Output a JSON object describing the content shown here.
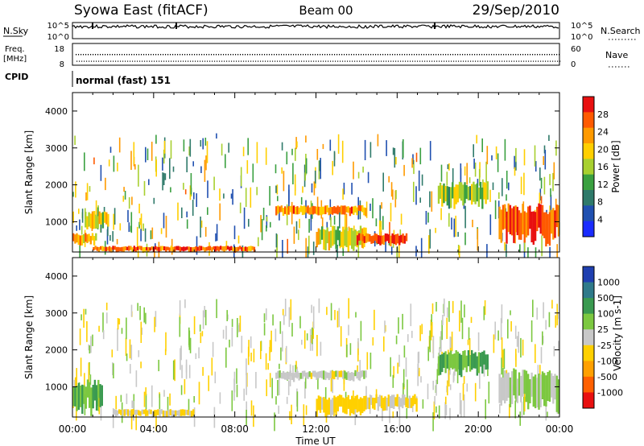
{
  "header": {
    "station": "Syowa East (fitACF)",
    "beam": "Beam 00",
    "date": "29/Sep/2010"
  },
  "noise_panel": {
    "left_label": "N.Sky",
    "right_label": "N.Search",
    "left_ticks": [
      "10^5",
      "10^0"
    ],
    "right_ticks": [
      "10^5",
      "10^0"
    ]
  },
  "freq_panel": {
    "left_label_top": "Freq.",
    "left_label_unit": "[MHz]",
    "right_label": "Nave",
    "left_ticks": [
      "18",
      "8"
    ],
    "right_ticks": [
      "60",
      "0"
    ]
  },
  "cpid": {
    "label": "CPID",
    "value": "normal (fast) 151"
  },
  "x_axis": {
    "title": "Time UT",
    "ticks": [
      "00:00",
      "04:00",
      "08:00",
      "12:00",
      "16:00",
      "20:00",
      "00:00"
    ]
  },
  "power_panel": {
    "ylabel": "Slant Range [km]",
    "yticks": [
      "4000",
      "3000",
      "2000",
      "1000"
    ],
    "colorbar_label": "Power [dB]",
    "colorbar_ticks": [
      "28",
      "24",
      "20",
      "16",
      "12",
      "8",
      "4"
    ],
    "colorbar_colors": [
      "#e81010",
      "#ff5a00",
      "#ff9a00",
      "#ffcf00",
      "#a8d030",
      "#3aa040",
      "#2f7a6a",
      "#2050b0",
      "#1a2cff"
    ]
  },
  "velocity_panel": {
    "ylabel": "Slant Range [km]",
    "yticks": [
      "4000",
      "3000",
      "2000",
      "1000"
    ],
    "colorbar_label": "Velocity [m s-1]",
    "colorbar_ticks": [
      "1000",
      "500",
      "100",
      "25",
      "-25",
      "-100",
      "-500",
      "-1000"
    ],
    "colorbar_colors": [
      "#1f3fb0",
      "#2f7a8a",
      "#3a9a50",
      "#7cc840",
      "#c8c8c8",
      "#ffd000",
      "#ffa000",
      "#ff6000",
      "#e81010"
    ]
  },
  "chart_data": [
    {
      "type": "heatmap",
      "title": "Power",
      "xlabel": "Time UT",
      "ylabel": "Slant Range [km]",
      "xlim": [
        "00:00",
        "24:00"
      ],
      "ylim": [
        180,
        4500
      ],
      "colorbar": {
        "label": "Power [dB]",
        "range": [
          0,
          30
        ]
      },
      "patches": [
        {
          "t": [
            0.0,
            1.2
          ],
          "r": [
            400,
            700
          ],
          "value": 20
        },
        {
          "t": [
            0.6,
            1.8
          ],
          "r": [
            800,
            1300
          ],
          "value": 18
        },
        {
          "t": [
            1.0,
            9.0
          ],
          "r": [
            200,
            350
          ],
          "value": 24
        },
        {
          "t": [
            10.0,
            14.5
          ],
          "r": [
            1200,
            1450
          ],
          "value": 22
        },
        {
          "t": [
            12.0,
            14.5
          ],
          "r": [
            300,
            900
          ],
          "value": 16
        },
        {
          "t": [
            14.0,
            16.5
          ],
          "r": [
            400,
            700
          ],
          "value": 26
        },
        {
          "t": [
            18.0,
            20.5
          ],
          "r": [
            1500,
            2100
          ],
          "value": 14
        },
        {
          "t": [
            21.0,
            24.0
          ],
          "r": [
            500,
            1500
          ],
          "value": 26
        }
      ]
    },
    {
      "type": "heatmap",
      "title": "Velocity",
      "xlabel": "Time UT",
      "ylabel": "Slant Range [km]",
      "xlim": [
        "00:00",
        "24:00"
      ],
      "ylim": [
        180,
        4500
      ],
      "colorbar": {
        "label": "Velocity [m s-1]",
        "range": [
          -1000,
          1000
        ]
      },
      "patches": [
        {
          "t": [
            0.0,
            1.5
          ],
          "r": [
            400,
            1200
          ],
          "value": 300
        },
        {
          "t": [
            2.0,
            6.0
          ],
          "r": [
            200,
            400
          ],
          "value": -150
        },
        {
          "t": [
            10.0,
            14.5
          ],
          "r": [
            1200,
            1450
          ],
          "value": 0
        },
        {
          "t": [
            12.0,
            14.5
          ],
          "r": [
            300,
            800
          ],
          "value": -200
        },
        {
          "t": [
            14.5,
            17.0
          ],
          "r": [
            400,
            800
          ],
          "value": -150
        },
        {
          "t": [
            18.0,
            20.5
          ],
          "r": [
            1400,
            2000
          ],
          "value": 300
        },
        {
          "t": [
            21.0,
            24.0
          ],
          "r": [
            500,
            1500
          ],
          "value": 150
        }
      ]
    }
  ]
}
